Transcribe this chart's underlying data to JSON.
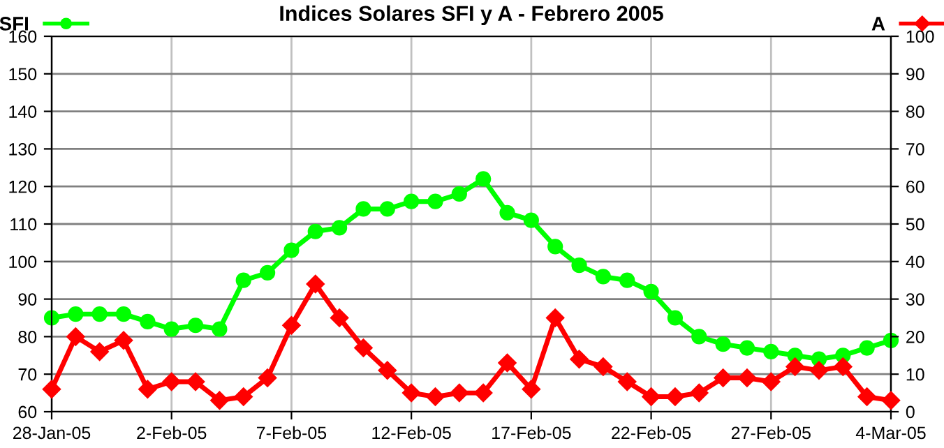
{
  "chart_data": {
    "type": "line",
    "title": "Indices Solares SFI y A - Febrero 2005",
    "x": [
      "2005-01-28",
      "2005-01-29",
      "2005-01-30",
      "2005-01-31",
      "2005-02-01",
      "2005-02-02",
      "2005-02-03",
      "2005-02-04",
      "2005-02-05",
      "2005-02-06",
      "2005-02-07",
      "2005-02-08",
      "2005-02-09",
      "2005-02-10",
      "2005-02-11",
      "2005-02-12",
      "2005-02-13",
      "2005-02-14",
      "2005-02-15",
      "2005-02-16",
      "2005-02-17",
      "2005-02-18",
      "2005-02-19",
      "2005-02-20",
      "2005-02-21",
      "2005-02-22",
      "2005-02-23",
      "2005-02-24",
      "2005-02-25",
      "2005-02-26",
      "2005-02-27",
      "2005-02-28",
      "2005-03-01",
      "2005-03-02",
      "2005-03-03",
      "2005-03-04"
    ],
    "series": [
      {
        "name": "SFI",
        "color": "#00ff00",
        "marker": "circle",
        "values": [
          85,
          86,
          86,
          86,
          84,
          82,
          83,
          82,
          95,
          97,
          103,
          108,
          109,
          114,
          114,
          116,
          116,
          118,
          122,
          113,
          111,
          104,
          99,
          96,
          95,
          92,
          85,
          80,
          78,
          77,
          76,
          75,
          74,
          75,
          77,
          79
        ]
      },
      {
        "name": "A",
        "color": "#ff0000",
        "marker": "diamond",
        "axis": "y2",
        "values": [
          6,
          20,
          16,
          19,
          6,
          8,
          8,
          3,
          4,
          9,
          23,
          34,
          25,
          17,
          11,
          5,
          4,
          5,
          5,
          13,
          6,
          25,
          14,
          12,
          8,
          4,
          4,
          5,
          9,
          9,
          8,
          12,
          11,
          12,
          4,
          3
        ]
      }
    ],
    "xlim": [
      "2005-01-28",
      "2005-03-04"
    ],
    "xticks": [
      {
        "value": "2005-01-28",
        "label": "28-Jan-05"
      },
      {
        "value": "2005-02-02",
        "label": "2-Feb-05"
      },
      {
        "value": "2005-02-07",
        "label": "7-Feb-05"
      },
      {
        "value": "2005-02-12",
        "label": "12-Feb-05"
      },
      {
        "value": "2005-02-17",
        "label": "17-Feb-05"
      },
      {
        "value": "2005-02-22",
        "label": "22-Feb-05"
      },
      {
        "value": "2005-02-27",
        "label": "27-Feb-05"
      },
      {
        "value": "2005-03-04",
        "label": "4-Mar-05"
      }
    ],
    "ylim": [
      60,
      160
    ],
    "yticks": [
      60,
      70,
      80,
      90,
      100,
      110,
      120,
      130,
      140,
      150,
      160
    ],
    "y2lim": [
      0,
      100
    ],
    "y2ticks": [
      0,
      10,
      20,
      30,
      40,
      50,
      60,
      70,
      80,
      90,
      100
    ],
    "grid": true,
    "legend": "top",
    "line_style": "solid"
  }
}
